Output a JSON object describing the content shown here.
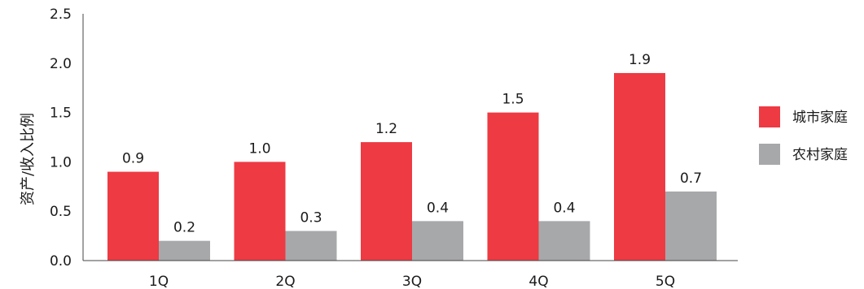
{
  "chart_data": {
    "type": "bar",
    "title": "",
    "xlabel": "",
    "ylabel": "资产/收入比例",
    "categories": [
      "1Q",
      "2Q",
      "3Q",
      "4Q",
      "5Q"
    ],
    "series": [
      {
        "name": "城市家庭",
        "values": [
          0.9,
          1.0,
          1.2,
          1.5,
          1.9
        ],
        "value_labels": [
          "0.9",
          "1.0",
          "1.2",
          "1.5",
          "1.9"
        ],
        "color": "#ee3a43"
      },
      {
        "name": "农村家庭",
        "values": [
          0.2,
          0.3,
          0.4,
          0.4,
          0.7
        ],
        "value_labels": [
          "0.2",
          "0.3",
          "0.4",
          "0.4",
          "0.7"
        ],
        "color": "#a7a8aa"
      }
    ],
    "ylim": [
      0,
      2.5
    ],
    "yticks": [
      0,
      0.5,
      1.0,
      1.5,
      2.0,
      2.5
    ],
    "ytick_labels": [
      "0.0",
      "0.5",
      "1.0",
      "1.5",
      "2.0",
      "2.5"
    ],
    "grid": false,
    "legend_position": "right"
  }
}
